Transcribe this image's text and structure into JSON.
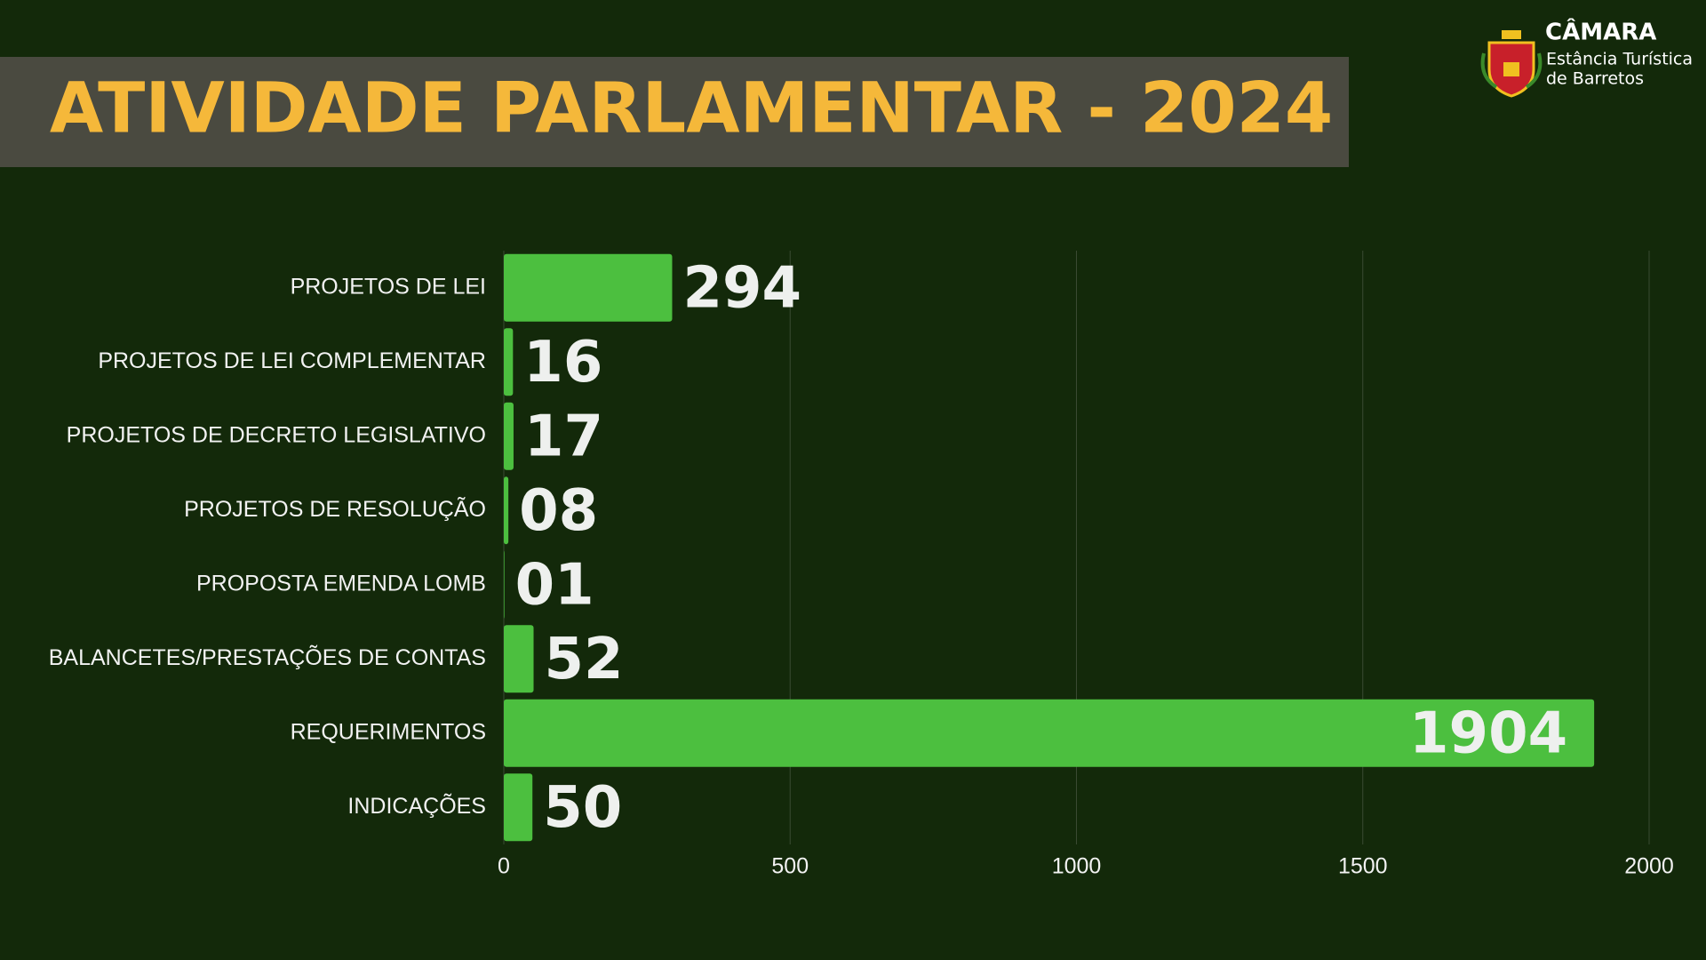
{
  "chart_data": {
    "type": "bar",
    "orientation": "horizontal",
    "title": "ATIVIDADE PARLAMENTAR - 2024",
    "categories": [
      "PROJETOS DE LEI",
      "PROJETOS DE LEI COMPLEMENTAR",
      "PROJETOS DE DECRETO LEGISLATIVO",
      "PROJETOS DE RESOLUÇÃO",
      "PROPOSTA EMENDA LOMB",
      "BALANCETES/PRESTAÇÕES DE CONTAS",
      "REQUERIMENTOS",
      "INDICAÇÕES"
    ],
    "values": [
      294,
      16,
      17,
      8,
      1,
      52,
      1904,
      50
    ],
    "value_labels": [
      "294",
      "16",
      "17",
      "08",
      "01",
      "52",
      "1904",
      "50"
    ],
    "color": "#4cbf3f",
    "xlim": [
      0,
      2000
    ],
    "xticks": [
      0,
      500,
      1000,
      1500,
      2000
    ],
    "grid": true
  },
  "logo": {
    "name": "CÂMARA",
    "line1": "Estância Turística",
    "line2": "de Barretos"
  }
}
